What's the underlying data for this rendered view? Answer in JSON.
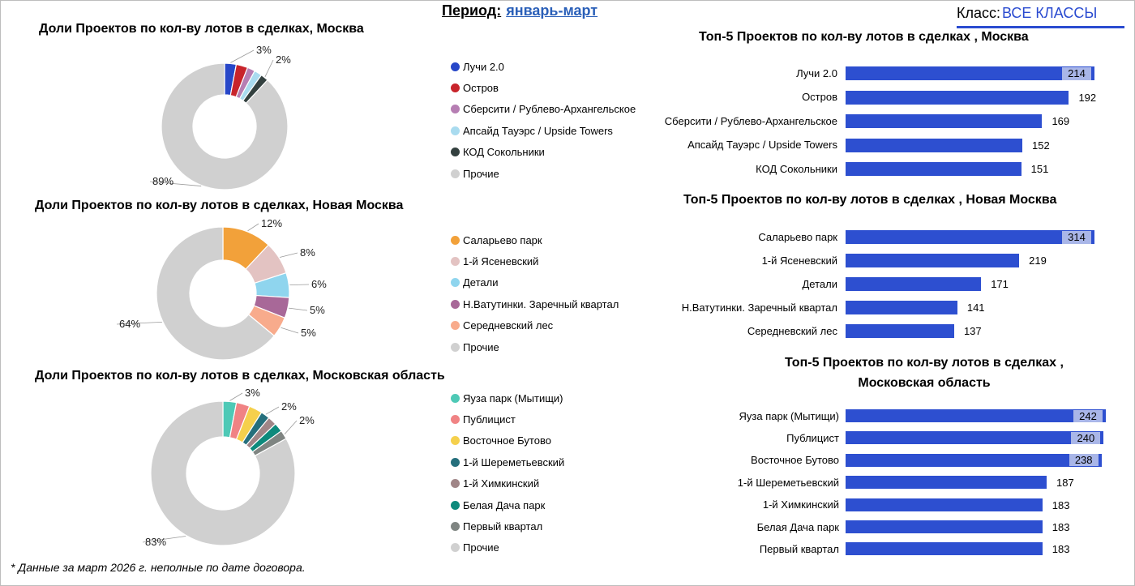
{
  "header": {
    "period_label": "Период:",
    "period_value": "январь-март",
    "class_label": "Класс:",
    "class_value": "ВСЕ КЛАССЫ"
  },
  "footnote": "* Данные за март 2026 г. неполные по дате договора.",
  "chart_data": [
    {
      "type": "pie",
      "id": "pie-moscow",
      "title": "Доли Проектов по кол-ву лотов в сделках, Москва",
      "labels": [
        "Лучи 2.0",
        "Остров",
        "Сберсити / Рублево-Архангельское",
        "Апсайд Тауэрс / Upside Towers",
        "КОД Сокольники",
        "Прочие"
      ],
      "values": [
        3,
        3,
        2,
        2,
        2,
        89
      ],
      "colors": [
        "#2747c8",
        "#c8242b",
        "#b67eb3",
        "#a9dbef",
        "#33403f",
        "#d0d0d0"
      ],
      "data_labels": [
        {
          "index": 0,
          "text": "3%"
        },
        {
          "index": 4,
          "text": "2%"
        },
        {
          "index": 5,
          "text": "89%"
        }
      ]
    },
    {
      "type": "pie",
      "id": "pie-new-moscow",
      "title": "Доли Проектов по кол-ву лотов в сделках, Новая Москва",
      "labels": [
        "Саларьево парк",
        "1-й Ясеневский",
        "Детали",
        "Н.Ватутинки. Заречный квартал",
        "Середневский лес",
        "Прочие"
      ],
      "values": [
        12,
        8,
        6,
        5,
        5,
        64
      ],
      "colors": [
        "#f2a13a",
        "#e3c3c2",
        "#8fd5ee",
        "#a86898",
        "#f8ab8c",
        "#d0d0d0"
      ],
      "data_labels": [
        {
          "index": 0,
          "text": "12%"
        },
        {
          "index": 1,
          "text": "8%"
        },
        {
          "index": 2,
          "text": "6%"
        },
        {
          "index": 3,
          "text": "5%"
        },
        {
          "index": 4,
          "text": "5%"
        },
        {
          "index": 5,
          "text": "64%"
        }
      ]
    },
    {
      "type": "pie",
      "id": "pie-mo",
      "title": "Доли Проектов по кол-ву лотов в сделках, Московская область",
      "labels": [
        "Яуза парк (Мытищи)",
        "Публицист",
        "Восточное Бутово",
        "1-й Шереметьевский",
        "1-й Химкинский",
        "Белая Дача парк",
        "Первый квартал",
        "Прочие"
      ],
      "values": [
        3,
        3,
        3,
        2,
        2,
        2,
        2,
        83
      ],
      "colors": [
        "#4ec9b6",
        "#f08384",
        "#f5d04c",
        "#256f7c",
        "#a08587",
        "#0d8a7c",
        "#7f8582",
        "#d0d0d0"
      ],
      "data_labels": [
        {
          "index": 0,
          "text": "3%"
        },
        {
          "index": 3,
          "text": "2%"
        },
        {
          "index": 6,
          "text": "2%"
        },
        {
          "index": 7,
          "text": "83%"
        }
      ]
    },
    {
      "type": "bar",
      "id": "bar-moscow",
      "orientation": "horizontal",
      "title": "Топ-5 Проектов по кол-ву лотов в сделках , Москва",
      "categories": [
        "Лучи 2.0",
        "Остров",
        "Сберсити / Рублево-Архангельское",
        "Апсайд Тауэрс / Upside Towers",
        "КОД Сокольники"
      ],
      "values": [
        214,
        192,
        169,
        152,
        151
      ],
      "value_labels": [
        "214",
        "192",
        "169",
        "152",
        "151"
      ],
      "xlim": [
        0,
        214
      ],
      "color": "#2d4fd0"
    },
    {
      "type": "bar",
      "id": "bar-new-moscow",
      "orientation": "horizontal",
      "title": "Топ-5 Проектов по кол-ву лотов в сделках , Новая Москва",
      "categories": [
        "Саларьево парк",
        "1-й Ясеневский",
        "Детали",
        "Н.Ватутинки. Заречный квартал",
        "Середневский лес"
      ],
      "values": [
        314,
        219,
        171,
        141,
        137
      ],
      "value_labels": [
        "314",
        "219",
        "171",
        "141",
        "137"
      ],
      "xlim": [
        0,
        314
      ],
      "color": "#2d4fd0"
    },
    {
      "type": "bar",
      "id": "bar-mo",
      "orientation": "horizontal",
      "title": "Топ-5 Проектов по кол-ву лотов в сделках , Московская область",
      "categories": [
        "Яуза парк (Мытищи)",
        "Публицист",
        "Восточное Бутово",
        "1-й Шереметьевский",
        "1-й Химкинский",
        "Белая Дача парк",
        "Первый квартал"
      ],
      "values": [
        242,
        240,
        238,
        187,
        183,
        183,
        183
      ],
      "value_labels": [
        "242",
        "240",
        "238",
        "187",
        "183",
        "183",
        "183"
      ],
      "xlim": [
        0,
        242
      ],
      "color": "#2d4fd0"
    }
  ]
}
